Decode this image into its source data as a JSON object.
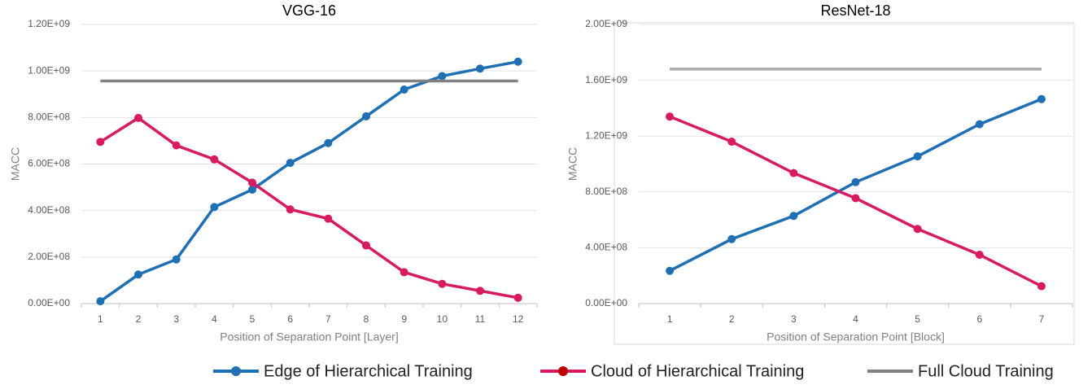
{
  "chart_data": [
    {
      "type": "line",
      "title": "VGG-16",
      "x_label": "Position of Separation Point [Layer]",
      "y_label": "MACC",
      "categories": [
        1,
        2,
        3,
        4,
        5,
        6,
        7,
        8,
        9,
        10,
        11,
        12
      ],
      "ylim": [
        0,
        1200000000
      ],
      "yticks": [
        {
          "value": 0,
          "label": "0.00E+00"
        },
        {
          "value": 200000000,
          "label": "2.00E+08"
        },
        {
          "value": 400000000,
          "label": "4.00E+08"
        },
        {
          "value": 600000000,
          "label": "6.00E+08"
        },
        {
          "value": 800000000,
          "label": "8.00E+08"
        },
        {
          "value": 1000000000,
          "label": "1.00E+09"
        },
        {
          "value": 1200000000,
          "label": "1.20E+09"
        }
      ],
      "grid": true,
      "frame": false,
      "series": [
        {
          "name": "Edge of Hierarchical Training",
          "color": "#1f6fb5",
          "marker": true,
          "values": [
            10000000,
            125000000,
            190000000,
            415000000,
            490000000,
            605000000,
            690000000,
            805000000,
            920000000,
            978000000,
            1010000000,
            1040000000
          ]
        },
        {
          "name": "Cloud of Hierarchical Training",
          "color": "#d81b60",
          "marker": true,
          "values": [
            695000000,
            798000000,
            680000000,
            620000000,
            520000000,
            405000000,
            365000000,
            250000000,
            135000000,
            85000000,
            55000000,
            25000000
          ]
        },
        {
          "name": "Full Cloud Training",
          "color": "#808080",
          "marker": false,
          "values": [
            957000000,
            957000000,
            957000000,
            957000000,
            957000000,
            957000000,
            957000000,
            957000000,
            957000000,
            957000000,
            957000000,
            957000000
          ]
        }
      ]
    },
    {
      "type": "line",
      "title": "ResNet-18",
      "x_label": "Position of Separation Point [Block]",
      "y_label": "MACC",
      "categories": [
        1,
        2,
        3,
        4,
        5,
        6,
        7
      ],
      "ylim": [
        0,
        2000000000
      ],
      "yticks": [
        {
          "value": 0,
          "label": "0.00E+00"
        },
        {
          "value": 400000000,
          "label": "4.00E+08"
        },
        {
          "value": 800000000,
          "label": "8.00E+08"
        },
        {
          "value": 1200000000,
          "label": "1.20E+09"
        },
        {
          "value": 1600000000,
          "label": "1.60E+09"
        },
        {
          "value": 2000000000,
          "label": "2.00E+09"
        }
      ],
      "grid": true,
      "frame": true,
      "series": [
        {
          "name": "Edge of Hierarchical Training",
          "color": "#1f6fb5",
          "marker": true,
          "values": [
            235000000,
            462000000,
            628000000,
            870000000,
            1055000000,
            1285000000,
            1465000000
          ]
        },
        {
          "name": "Cloud of Hierarchical Training",
          "color": "#d81b60",
          "marker": true,
          "values": [
            1340000000,
            1160000000,
            935000000,
            755000000,
            535000000,
            350000000,
            125000000
          ]
        },
        {
          "name": "Full Cloud Training",
          "color": "#aaaaaa",
          "marker": false,
          "values": [
            1680000000,
            1680000000,
            1680000000,
            1680000000,
            1680000000,
            1680000000,
            1680000000
          ]
        }
      ]
    }
  ]
}
